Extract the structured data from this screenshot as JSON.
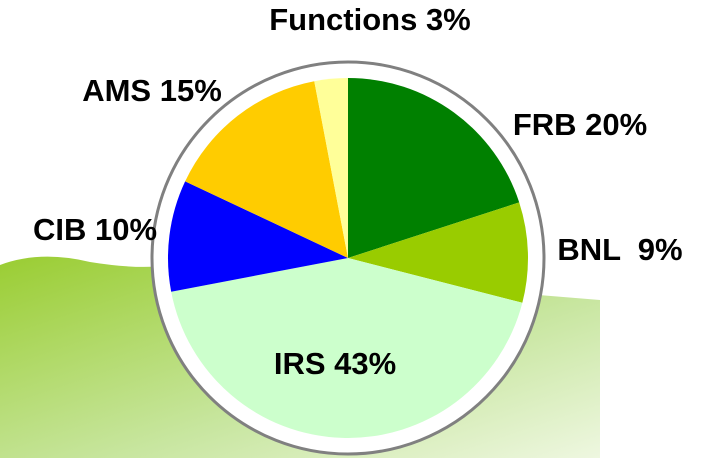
{
  "chart_data": {
    "type": "pie",
    "categories": [
      "FRB 20%",
      "BNL  9%",
      "IRS 43%",
      "CIB 10%",
      "AMS 15%",
      "Functions 3%"
    ],
    "values": [
      20,
      9,
      43,
      10,
      15,
      3
    ],
    "colors": [
      "#008000",
      "#99cc00",
      "#ccffcc",
      "#0000ff",
      "#ffcc00",
      "#ffff99"
    ]
  }
}
